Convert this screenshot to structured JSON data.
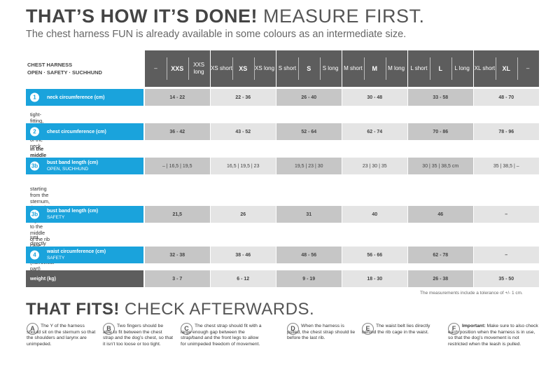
{
  "heading1": {
    "bold": "THAT’S HOW IT’S DONE!",
    "rest": " MEASURE FIRST."
  },
  "subheading": "The chest harness FUN is already available in some colours as an intermediate size.",
  "table_label": {
    "line1": "CHEST HARNESS",
    "line2": "OPEN · SAFETY · SUCHHUND"
  },
  "sizes": [
    {
      "a": "–",
      "b": "XXS",
      "c": "XXS long",
      "bold": "b"
    },
    {
      "a": "XS short",
      "b": "XS",
      "c": "XS long",
      "bold": "b"
    },
    {
      "a": "S short",
      "b": "S",
      "c": "S long",
      "bold": "b"
    },
    {
      "a": "M short",
      "b": "M",
      "c": "M long",
      "bold": "b"
    },
    {
      "a": "L short",
      "b": "L",
      "c": "L long",
      "bold": "b"
    },
    {
      "a": "XL short",
      "b": "XL",
      "c": "–",
      "bold": "b"
    }
  ],
  "rows": [
    {
      "num": "1",
      "label": "neck circumference (cm)",
      "sub": "",
      "values": [
        "14 - 22",
        "22 - 36",
        "26 - 40",
        "30 - 48",
        "33 - 58",
        "48 - 70"
      ],
      "note_pre": "tight-fitting, ",
      "note_bold": "in the middle",
      "note_post": " of the neck"
    },
    {
      "num": "2",
      "label": "chest circumference (cm)",
      "sub": "",
      "values": [
        "36 - 42",
        "43 - 52",
        "52 - 64",
        "62 - 74",
        "70 - 86",
        "78 - 96"
      ],
      "note_pre": "",
      "note_bold": "in the middle",
      "note_post": " of the chest"
    },
    {
      "num": "3b",
      "label": "bust band length (cm)",
      "sub": "OPEN, SUCHHUND",
      "values": [
        "–  |  16,5  |  19,5",
        "16,5  |  19,5  |  23",
        "19,5  |  23  |  30",
        "23  |  30  |  35",
        "30  |  35  |  38,5 cm",
        "35  |  38,5  |  –"
      ],
      "note_lines": [
        "starting from the sternum,",
        "through the front legs,",
        "to the middle of the rib cage"
      ]
    },
    {
      "num": "3b",
      "label": "bust band length (cm)",
      "sub": "SAFETY",
      "values": [
        "21,5",
        "26",
        "31",
        "40",
        "46",
        "–"
      ],
      "note_lines": [
        "just directly behind the rib cage",
        "(narrowest part)"
      ]
    },
    {
      "num": "4",
      "label": "waist circumference (cm)",
      "sub": "SAFETY",
      "values": [
        "32 - 38",
        "38 - 46",
        "48 - 56",
        "56 - 66",
        "62 - 78",
        "–"
      ]
    },
    {
      "num": "",
      "label": "weight (kg)",
      "sub": "",
      "values": [
        "3 - 7",
        "6 - 12",
        "9 - 19",
        "18 - 30",
        "26 - 38",
        "35 - 50"
      ]
    }
  ],
  "tolerance": "The measurements include a tolerance of +/- 1 cm.",
  "heading2": {
    "bold": "THAT FITS!",
    "rest": " CHECK AFTERWARDS."
  },
  "steps": [
    {
      "letter": "A",
      "text": "The Y of the harness should sit on the sternum so that the shoulders and larynx are unimpeded."
    },
    {
      "letter": "B",
      "text": "Two fingers should be able to fit between the chest strap and the dog’s chest, so that it isn’t too loose or too tight."
    },
    {
      "letter": "C",
      "text": "The chest strap should fit with a large enough gap between the strap/band and the front legs to allow for unimpeded freedom of movement."
    },
    {
      "letter": "D",
      "text": "When the harness is pulled, the chest strap should lie before the last rib."
    },
    {
      "letter": "E",
      "text": "The waist belt lies directly behind the rib cage in the waist."
    },
    {
      "letter": "F",
      "bold": "Important:",
      "text": " Make sure to also check each position when the harness is in use, so that the dog’s movement is not restricted when the leash is pulled."
    }
  ]
}
